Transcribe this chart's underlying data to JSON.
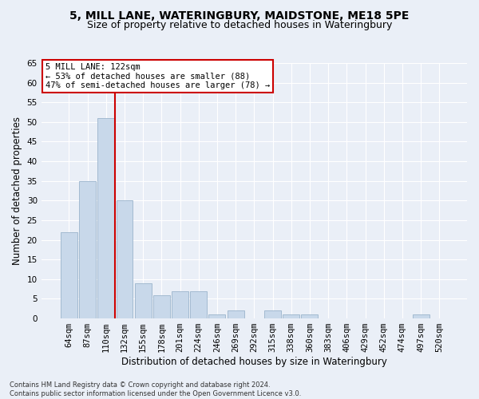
{
  "title1": "5, MILL LANE, WATERINGBURY, MAIDSTONE, ME18 5PE",
  "title2": "Size of property relative to detached houses in Wateringbury",
  "xlabel": "Distribution of detached houses by size in Wateringbury",
  "ylabel": "Number of detached properties",
  "categories": [
    "64sqm",
    "87sqm",
    "110sqm",
    "132sqm",
    "155sqm",
    "178sqm",
    "201sqm",
    "224sqm",
    "246sqm",
    "269sqm",
    "292sqm",
    "315sqm",
    "338sqm",
    "360sqm",
    "383sqm",
    "406sqm",
    "429sqm",
    "452sqm",
    "474sqm",
    "497sqm",
    "520sqm"
  ],
  "values": [
    22,
    35,
    51,
    30,
    9,
    6,
    7,
    7,
    1,
    2,
    0,
    2,
    1,
    1,
    0,
    0,
    0,
    0,
    0,
    1,
    0
  ],
  "bar_color": "#c8d8ea",
  "bar_edge_color": "#9ab4cc",
  "annotation_text": "5 MILL LANE: 122sqm\n← 53% of detached houses are smaller (88)\n47% of semi-detached houses are larger (78) →",
  "annotation_box_color": "#ffffff",
  "annotation_box_edge": "#cc0000",
  "vline_color": "#cc0000",
  "vline_x_index": 2.5,
  "ylim": [
    0,
    65
  ],
  "yticks": [
    0,
    5,
    10,
    15,
    20,
    25,
    30,
    35,
    40,
    45,
    50,
    55,
    60,
    65
  ],
  "footer": "Contains HM Land Registry data © Crown copyright and database right 2024.\nContains public sector information licensed under the Open Government Licence v3.0.",
  "bg_color": "#eaeff7",
  "plot_bg_color": "#eaeff7",
  "title1_fontsize": 10,
  "title2_fontsize": 9,
  "xlabel_fontsize": 8.5,
  "ylabel_fontsize": 8.5,
  "tick_fontsize": 7.5,
  "footer_fontsize": 6
}
